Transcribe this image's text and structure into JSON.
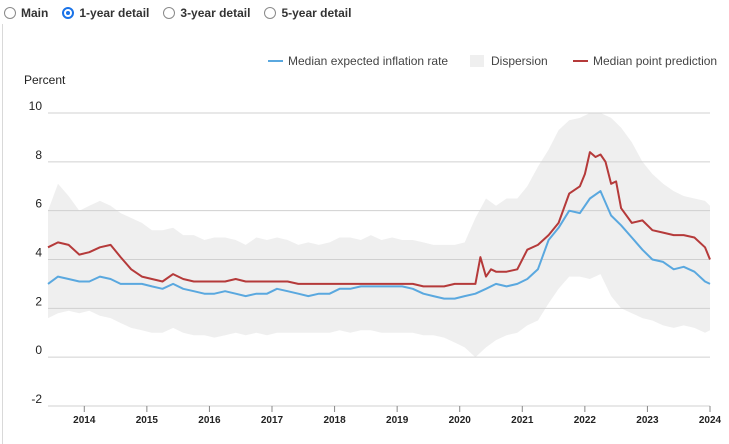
{
  "tabs": [
    {
      "label": "Main",
      "selected": false
    },
    {
      "label": "1-year detail",
      "selected": true
    },
    {
      "label": "3-year detail",
      "selected": false
    },
    {
      "label": "5-year detail",
      "selected": false
    }
  ],
  "colors": {
    "median_rate": "#5aa8df",
    "dispersion": "#efefef",
    "point_prediction": "#b53a3a",
    "accent": "#1a73e8",
    "grid": "#d0d0d0"
  },
  "chart_data": {
    "type": "line",
    "ylabel": "Percent",
    "ylim": [
      -2,
      10
    ],
    "yticks": [
      10,
      8,
      6,
      4,
      2,
      0,
      -2
    ],
    "xlim": [
      2013.42,
      2024.0
    ],
    "xticks": [
      2014,
      2015,
      2016,
      2017,
      2018,
      2019,
      2020,
      2021,
      2022,
      2023,
      2024
    ],
    "legend_position": "top-right",
    "grid": true,
    "legend": [
      "Median expected inflation rate",
      "Dispersion",
      "Median point prediction"
    ],
    "series": [
      {
        "name": "Median expected inflation rate",
        "x": [
          2013.42,
          2013.58,
          2013.75,
          2013.92,
          2014.08,
          2014.25,
          2014.42,
          2014.58,
          2014.75,
          2014.92,
          2015.08,
          2015.25,
          2015.42,
          2015.58,
          2015.75,
          2015.92,
          2016.08,
          2016.25,
          2016.42,
          2016.58,
          2016.75,
          2016.92,
          2017.08,
          2017.25,
          2017.42,
          2017.58,
          2017.75,
          2017.92,
          2018.08,
          2018.25,
          2018.42,
          2018.58,
          2018.75,
          2018.92,
          2019.08,
          2019.25,
          2019.42,
          2019.58,
          2019.75,
          2019.92,
          2020.08,
          2020.25,
          2020.42,
          2020.58,
          2020.75,
          2020.92,
          2021.08,
          2021.25,
          2021.42,
          2021.58,
          2021.75,
          2021.92,
          2022.08,
          2022.25,
          2022.42,
          2022.58,
          2022.75,
          2022.92,
          2023.08,
          2023.25,
          2023.42,
          2023.58,
          2023.75,
          2023.92,
          2024.0
        ],
        "values": [
          3.0,
          3.3,
          3.2,
          3.1,
          3.1,
          3.3,
          3.2,
          3.0,
          3.0,
          3.0,
          2.9,
          2.8,
          3.0,
          2.8,
          2.7,
          2.6,
          2.6,
          2.7,
          2.6,
          2.5,
          2.6,
          2.6,
          2.8,
          2.7,
          2.6,
          2.5,
          2.6,
          2.6,
          2.8,
          2.8,
          2.9,
          2.9,
          2.9,
          2.9,
          2.9,
          2.8,
          2.6,
          2.5,
          2.4,
          2.4,
          2.5,
          2.6,
          2.8,
          3.0,
          2.9,
          3.0,
          3.2,
          3.6,
          4.8,
          5.3,
          6.0,
          5.9,
          6.5,
          6.8,
          5.8,
          5.4,
          4.9,
          4.4,
          4.0,
          3.9,
          3.6,
          3.7,
          3.5,
          3.1,
          3.0
        ]
      },
      {
        "name": "Median point prediction",
        "x": [
          2013.42,
          2013.58,
          2013.75,
          2013.92,
          2014.08,
          2014.25,
          2014.42,
          2014.58,
          2014.75,
          2014.92,
          2015.08,
          2015.25,
          2015.42,
          2015.58,
          2015.75,
          2015.92,
          2016.08,
          2016.25,
          2016.42,
          2016.58,
          2016.75,
          2016.92,
          2017.08,
          2017.25,
          2017.42,
          2017.58,
          2017.75,
          2017.92,
          2018.08,
          2018.25,
          2018.42,
          2018.58,
          2018.75,
          2018.92,
          2019.08,
          2019.25,
          2019.42,
          2019.58,
          2019.75,
          2019.92,
          2020.08,
          2020.25,
          2020.33,
          2020.42,
          2020.5,
          2020.58,
          2020.75,
          2020.92,
          2021.08,
          2021.25,
          2021.42,
          2021.58,
          2021.75,
          2021.92,
          2022.0,
          2022.08,
          2022.17,
          2022.25,
          2022.33,
          2022.42,
          2022.5,
          2022.58,
          2022.75,
          2022.92,
          2023.08,
          2023.25,
          2023.42,
          2023.58,
          2023.75,
          2023.92,
          2024.0
        ],
        "values": [
          4.5,
          4.7,
          4.6,
          4.2,
          4.3,
          4.5,
          4.6,
          4.1,
          3.6,
          3.3,
          3.2,
          3.1,
          3.4,
          3.2,
          3.1,
          3.1,
          3.1,
          3.1,
          3.2,
          3.1,
          3.1,
          3.1,
          3.1,
          3.1,
          3.0,
          3.0,
          3.0,
          3.0,
          3.0,
          3.0,
          3.0,
          3.0,
          3.0,
          3.0,
          3.0,
          3.0,
          2.9,
          2.9,
          2.9,
          3.0,
          3.0,
          3.0,
          4.1,
          3.3,
          3.6,
          3.5,
          3.5,
          3.6,
          4.4,
          4.6,
          5.0,
          5.5,
          6.7,
          7.0,
          7.5,
          8.4,
          8.2,
          8.3,
          8.0,
          7.1,
          7.2,
          6.1,
          5.5,
          5.6,
          5.2,
          5.1,
          5.0,
          5.0,
          4.9,
          4.5,
          4.0
        ]
      },
      {
        "name": "Dispersion",
        "type": "area",
        "x": [
          2013.42,
          2013.58,
          2013.75,
          2013.92,
          2014.08,
          2014.25,
          2014.42,
          2014.58,
          2014.75,
          2014.92,
          2015.08,
          2015.25,
          2015.42,
          2015.58,
          2015.75,
          2015.92,
          2016.08,
          2016.25,
          2016.42,
          2016.58,
          2016.75,
          2016.92,
          2017.08,
          2017.25,
          2017.42,
          2017.58,
          2017.75,
          2017.92,
          2018.08,
          2018.25,
          2018.42,
          2018.58,
          2018.75,
          2018.92,
          2019.08,
          2019.25,
          2019.42,
          2019.58,
          2019.75,
          2019.92,
          2020.08,
          2020.25,
          2020.42,
          2020.58,
          2020.75,
          2020.92,
          2021.08,
          2021.25,
          2021.42,
          2021.58,
          2021.75,
          2021.92,
          2022.08,
          2022.25,
          2022.42,
          2022.58,
          2022.75,
          2022.92,
          2023.08,
          2023.25,
          2023.42,
          2023.58,
          2023.75,
          2023.92,
          2024.0
        ],
        "low": [
          1.6,
          1.8,
          1.9,
          1.8,
          1.9,
          1.7,
          1.6,
          1.4,
          1.2,
          1.1,
          1.0,
          1.0,
          1.2,
          1.0,
          0.9,
          0.9,
          0.8,
          0.9,
          1.0,
          0.9,
          1.0,
          0.9,
          1.0,
          1.0,
          1.0,
          1.0,
          1.0,
          1.0,
          1.1,
          1.0,
          1.1,
          1.1,
          1.0,
          1.0,
          1.0,
          1.0,
          0.9,
          0.9,
          0.8,
          0.6,
          0.4,
          0.0,
          0.4,
          0.7,
          0.9,
          1.0,
          1.3,
          1.5,
          2.2,
          2.8,
          3.3,
          3.3,
          3.2,
          3.4,
          2.5,
          2.0,
          1.8,
          1.6,
          1.5,
          1.3,
          1.2,
          1.3,
          1.2,
          1.0,
          1.1
        ],
        "high": [
          6.0,
          7.1,
          6.6,
          6.0,
          6.2,
          6.4,
          6.2,
          5.9,
          5.7,
          5.5,
          5.2,
          5.2,
          5.3,
          5.0,
          5.0,
          4.8,
          4.9,
          4.9,
          4.8,
          4.6,
          4.9,
          4.8,
          4.9,
          4.8,
          4.6,
          4.7,
          4.6,
          4.7,
          4.9,
          4.9,
          4.8,
          5.0,
          4.8,
          4.9,
          4.8,
          4.8,
          4.7,
          4.6,
          4.6,
          4.6,
          4.7,
          5.7,
          6.5,
          6.2,
          6.5,
          6.5,
          7.0,
          7.8,
          8.5,
          9.3,
          9.7,
          9.8,
          10.0,
          10.0,
          9.8,
          9.4,
          8.8,
          8.0,
          7.5,
          7.1,
          6.8,
          6.6,
          6.5,
          6.4,
          6.2
        ]
      }
    ]
  }
}
